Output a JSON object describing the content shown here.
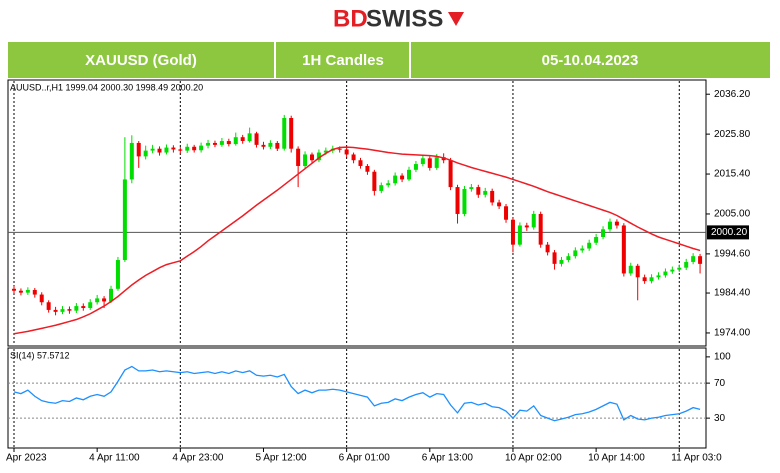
{
  "header": {
    "logo": {
      "part1": "BD",
      "part2": "SWISS"
    },
    "cells": [
      "XAUUSD (Gold)",
      "1H Candles",
      "05-10.04.2023"
    ]
  },
  "chart_data": [
    {
      "type": "candlestick",
      "info": "AUUSD..r,H1  1999.04 2000.30 1998.49 2000.20",
      "categories": [
        "Apr 2023",
        null,
        null,
        null,
        null,
        null,
        null,
        null,
        null,
        null,
        null,
        null,
        "4 Apr 11:00",
        null,
        null,
        null,
        null,
        null,
        null,
        null,
        null,
        null,
        null,
        null,
        "4 Apr 23:00",
        null,
        null,
        null,
        null,
        null,
        null,
        null,
        null,
        null,
        null,
        null,
        "5 Apr 12:00",
        null,
        null,
        null,
        null,
        null,
        null,
        null,
        null,
        null,
        null,
        null,
        "6 Apr 01:00",
        null,
        null,
        null,
        null,
        null,
        null,
        null,
        null,
        null,
        null,
        null,
        "6 Apr 13:00",
        null,
        null,
        null,
        null,
        null,
        null,
        null,
        null,
        null,
        null,
        null,
        "10 Apr 02:00",
        null,
        null,
        null,
        null,
        null,
        null,
        null,
        null,
        null,
        null,
        null,
        "10 Apr 14:00",
        null,
        null,
        null,
        null,
        null,
        null,
        null,
        null,
        null,
        null,
        null,
        "11 Apr 03:0",
        null,
        null,
        null
      ],
      "open": [
        1985.5,
        1985.0,
        1984.5,
        1985.2,
        1984.0,
        1982.0,
        1980.0,
        1979.5,
        1980.2,
        1979.8,
        1981.0,
        1980.5,
        1982.0,
        1983.0,
        1982.2,
        1985.5,
        1993.0,
        2014.0,
        2023.5,
        2020.0,
        2021.5,
        2022.0,
        2021.0,
        2022.3,
        2021.8,
        2021.5,
        2022.5,
        2021.6,
        2022.8,
        2023.5,
        2023.0,
        2024.0,
        2023.2,
        2025.0,
        2024.0,
        2026.0,
        2023.0,
        2022.5,
        2023.5,
        2022.0,
        2030.0,
        2022.0,
        2017.5,
        2020.5,
        2019.0,
        2021.0,
        2021.5,
        2022.0,
        2021.8,
        2020.5,
        2019.0,
        2017.5,
        2016.0,
        2011.0,
        2012.5,
        2013.0,
        2015.0,
        2014.0,
        2016.5,
        2018.0,
        2019.5,
        2017.0,
        2019.8,
        2019.0,
        2012.0,
        2005.0,
        2011.5,
        2012.0,
        2010.0,
        2011.0,
        2008.0,
        2007.0,
        2003.5,
        1997.0,
        2002.0,
        2001.5,
        2005.0,
        1997.0,
        1995.0,
        1992.0,
        1993.0,
        1994.0,
        1995.5,
        1996.0,
        1997.5,
        1999.0,
        2001.0,
        2003.0,
        2002.0,
        1989.5,
        1991.5,
        1988.5,
        1987.5,
        1988.5,
        1989.0,
        1990.0,
        1990.5,
        1991.0,
        1992.5,
        1994.0
      ],
      "high": [
        1986.2,
        1985.6,
        1985.9,
        1985.7,
        1984.6,
        1982.5,
        1980.8,
        1981.0,
        1980.9,
        1981.8,
        1981.7,
        1982.8,
        1983.9,
        1983.6,
        1986.3,
        1993.8,
        2025.0,
        2025.5,
        2024.0,
        2022.8,
        2023.0,
        2022.6,
        2023.1,
        2022.9,
        2022.4,
        2023.3,
        2023.0,
        2023.6,
        2024.3,
        2024.1,
        2024.8,
        2024.6,
        2026.2,
        2025.6,
        2027.5,
        2026.4,
        2023.8,
        2024.2,
        2024.0,
        2030.8,
        2030.6,
        2022.6,
        2021.3,
        2021.0,
        2021.8,
        2022.3,
        2022.8,
        2022.6,
        2022.3,
        2021.0,
        2019.6,
        2018.0,
        2016.5,
        2013.2,
        2013.8,
        2015.8,
        2015.6,
        2017.3,
        2018.8,
        2020.3,
        2020.0,
        2020.6,
        2020.8,
        2019.6,
        2012.6,
        2012.3,
        2012.8,
        2012.6,
        2011.8,
        2011.6,
        2008.7,
        2007.6,
        2004.1,
        2002.8,
        2002.7,
        2005.8,
        2005.6,
        1997.7,
        1995.6,
        1993.8,
        1994.8,
        1996.3,
        1996.8,
        1998.3,
        1999.8,
        2001.8,
        2003.8,
        2003.6,
        2002.6,
        1992.3,
        1992.0,
        1989.2,
        1989.3,
        1989.8,
        1990.8,
        1991.3,
        1991.8,
        1993.3,
        1994.8,
        1994.6
      ],
      "low": [
        1984.3,
        1983.8,
        1983.9,
        1983.2,
        1981.2,
        1979.3,
        1978.6,
        1978.9,
        1979.0,
        1979.2,
        1979.8,
        1980.0,
        1981.4,
        1980.5,
        1981.8,
        1985.0,
        1992.5,
        2013.0,
        2017.0,
        2019.2,
        2020.8,
        2020.2,
        2020.5,
        2021.0,
        2020.6,
        2020.9,
        2021.0,
        2021.0,
        2022.1,
        2022.4,
        2022.5,
        2022.6,
        2022.8,
        2023.3,
        2023.6,
        2022.3,
        2021.8,
        2021.9,
        2021.4,
        2021.5,
        2021.0,
        2012.0,
        2016.8,
        2018.2,
        2018.5,
        2020.4,
        2020.9,
        2021.0,
        2019.8,
        2018.2,
        2016.8,
        2015.2,
        2009.8,
        2010.4,
        2011.9,
        2012.4,
        2013.3,
        2013.6,
        2015.9,
        2017.4,
        2016.3,
        2016.5,
        2018.2,
        2011.2,
        2002.5,
        2004.4,
        2010.8,
        2009.2,
        2009.3,
        2007.2,
        2006.3,
        2002.7,
        1995.0,
        1996.5,
        2000.6,
        2000.9,
        1996.2,
        1994.2,
        1990.5,
        1991.3,
        1992.4,
        1993.4,
        1994.9,
        1995.4,
        1996.9,
        1998.4,
        2000.4,
        2001.2,
        1988.7,
        1988.9,
        1982.5,
        1986.8,
        1986.9,
        1987.9,
        1988.4,
        1989.4,
        1989.9,
        1990.4,
        1991.9,
        1989.5
      ],
      "close": [
        1985.0,
        1984.5,
        1985.2,
        1984.0,
        1982.0,
        1980.0,
        1979.5,
        1980.2,
        1979.8,
        1981.0,
        1980.5,
        1982.0,
        1983.0,
        1982.2,
        1985.5,
        1993.0,
        2014.0,
        2023.5,
        2020.0,
        2021.5,
        2022.0,
        2021.0,
        2022.3,
        2021.8,
        2021.5,
        2022.5,
        2021.6,
        2022.8,
        2023.5,
        2023.0,
        2024.0,
        2023.2,
        2025.0,
        2024.0,
        2026.0,
        2023.0,
        2022.5,
        2023.5,
        2022.0,
        2030.0,
        2022.0,
        2017.5,
        2020.5,
        2019.0,
        2021.0,
        2021.5,
        2022.0,
        2021.8,
        2020.5,
        2019.0,
        2017.5,
        2016.0,
        2011.0,
        2012.5,
        2013.0,
        2015.0,
        2014.0,
        2016.5,
        2018.0,
        2019.5,
        2017.0,
        2019.8,
        2019.0,
        2012.0,
        2005.0,
        2011.5,
        2012.0,
        2010.0,
        2011.0,
        2008.0,
        2007.0,
        2003.5,
        1997.0,
        2002.0,
        2001.5,
        2005.0,
        1997.0,
        1995.0,
        1992.0,
        1993.0,
        1994.0,
        1995.5,
        1996.0,
        1997.5,
        1999.0,
        2001.0,
        2003.0,
        2002.0,
        1989.5,
        1991.5,
        1988.5,
        1987.5,
        1988.5,
        1989.0,
        1990.0,
        1990.5,
        1991.0,
        1992.5,
        1994.0,
        1992.0
      ],
      "bull_color": "#00dd00",
      "bear_color": "#ee0000",
      "ma": {
        "color": "#ee1c24",
        "values": [
          1973.8,
          1974.1,
          1974.4,
          1974.8,
          1975.2,
          1975.6,
          1976.0,
          1976.5,
          1977.0,
          1977.5,
          1978.2,
          1979.0,
          1980.0,
          1981.0,
          1982.2,
          1983.5,
          1985.0,
          1986.5,
          1987.8,
          1989.0,
          1990.0,
          1991.0,
          1991.8,
          1992.3,
          1992.8,
          1994.0,
          1995.2,
          1996.5,
          1998.0,
          1999.3,
          2000.6,
          2001.9,
          2003.2,
          2004.5,
          2005.9,
          2007.3,
          2008.6,
          2009.9,
          2011.2,
          2012.6,
          2014.0,
          2015.4,
          2016.8,
          2018.2,
          2019.6,
          2020.8,
          2021.8,
          2022.3,
          2022.4,
          2022.3,
          2022.1,
          2021.9,
          2021.6,
          2021.3,
          2021.0,
          2020.8,
          2020.6,
          2020.5,
          2020.4,
          2020.3,
          2020.2,
          2020.0,
          2019.6,
          2019.0,
          2018.3,
          2017.7,
          2017.1,
          2016.6,
          2016.1,
          2015.6,
          2015.1,
          2014.6,
          2014.0,
          2013.4,
          2012.8,
          2012.2,
          2011.5,
          2010.8,
          2010.2,
          2009.6,
          2009.0,
          2008.4,
          2007.8,
          2007.2,
          2006.6,
          2006.0,
          2005.4,
          2004.6,
          2003.6,
          2002.6,
          2001.6,
          2000.7,
          1999.8,
          1999.0,
          1998.4,
          1997.8,
          1997.2,
          1996.6,
          1996.0,
          1995.5
        ]
      },
      "current_price": {
        "value": 2000.2,
        "label": "2000.20"
      },
      "ylim": [
        1970.6,
        2039.9
      ],
      "yticks": [
        {
          "value": 2036.2,
          "label": "2036.20"
        },
        {
          "value": 2025.8,
          "label": "2025.80"
        },
        {
          "value": 2015.4,
          "label": "2015.40"
        },
        {
          "value": 2005.0,
          "label": "2005.00"
        },
        {
          "value": 1994.6,
          "label": "1994.60"
        },
        {
          "value": 1984.4,
          "label": "1984.40"
        },
        {
          "value": 1974.0,
          "label": "1974.00"
        }
      ]
    },
    {
      "type": "line",
      "label": "SI(14) 57.5712",
      "color": "#1e90ff",
      "values": [
        60,
        58,
        62,
        55,
        50,
        48,
        47,
        50,
        49,
        53,
        51,
        55,
        57,
        55,
        60,
        72,
        85,
        89,
        84,
        84,
        85,
        83,
        84,
        83,
        82,
        83,
        81,
        82,
        83,
        81,
        83,
        81,
        84,
        82,
        84,
        79,
        78,
        79,
        77,
        80,
        66,
        58,
        62,
        59,
        62,
        62,
        63,
        62,
        60,
        58,
        56,
        54,
        44,
        47,
        48,
        52,
        50,
        54,
        57,
        59,
        54,
        58,
        57,
        45,
        36,
        47,
        48,
        45,
        47,
        43,
        42,
        38,
        30,
        39,
        38,
        44,
        33,
        30,
        27,
        29,
        31,
        34,
        35,
        37,
        40,
        44,
        48,
        46,
        28,
        33,
        29,
        28,
        30,
        31,
        33,
        34,
        35,
        38,
        42,
        40
      ],
      "ylim": [
        -3,
        109
      ],
      "yticks": [
        100,
        70,
        30
      ],
      "levels": [
        70,
        30
      ]
    }
  ]
}
